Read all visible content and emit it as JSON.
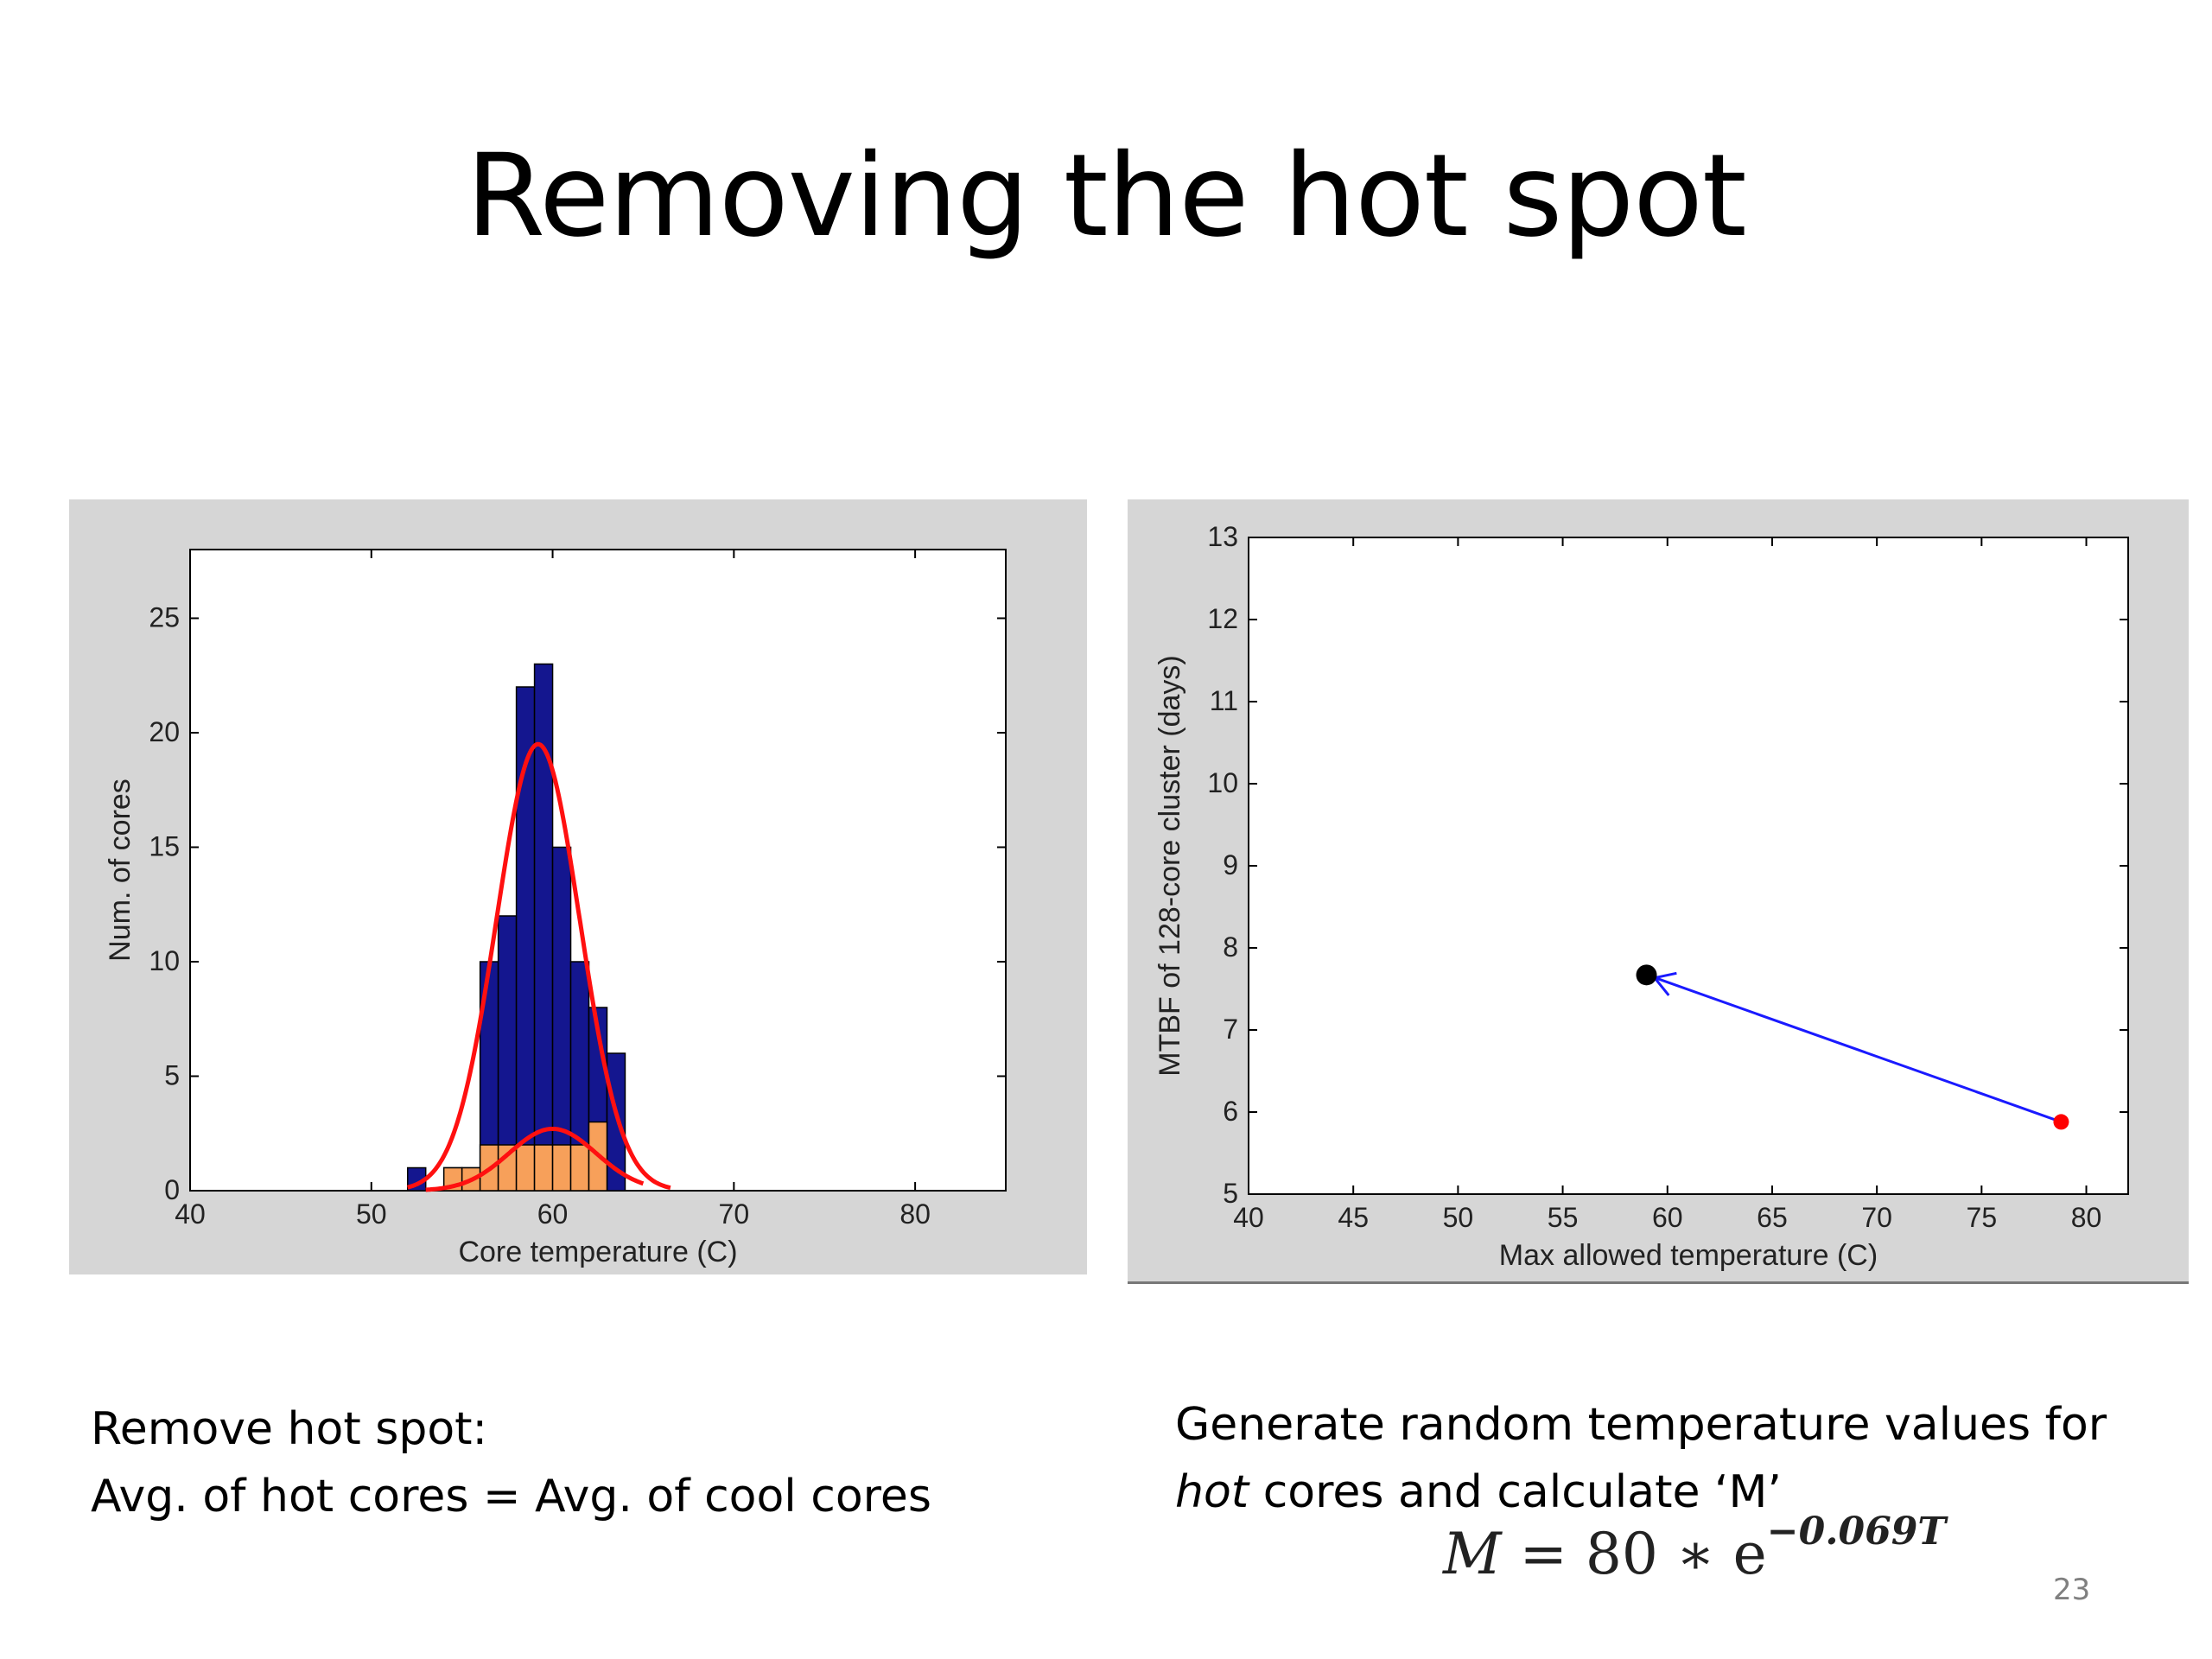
{
  "slide": {
    "title": "Removing the hot spot",
    "page_number": "23"
  },
  "captions": {
    "left_line1": "Remove hot spot:",
    "left_line2": "Avg. of hot cores = Avg. of cool cores",
    "right_line1": "Generate random temperature values for",
    "right_line2_italic": "hot",
    "right_line2_rest": " cores and calculate ‘M’"
  },
  "formula": {
    "lhs": "M",
    "eq": " = 80 ∗ e",
    "exponent": "−0.069T"
  },
  "chart_data": [
    {
      "type": "bar",
      "title": "",
      "xlabel": "Core temperature (C)",
      "ylabel": "Num. of cores",
      "xlim": [
        40,
        85
      ],
      "ylim": [
        0,
        28
      ],
      "xticks": [
        40,
        50,
        60,
        70,
        80
      ],
      "yticks": [
        0,
        5,
        10,
        15,
        20,
        25
      ],
      "grid": false,
      "series": [
        {
          "color": "#14168f",
          "bins_x": [
            52,
            53,
            54,
            55,
            56,
            57,
            58,
            59,
            60,
            61,
            62,
            63
          ],
          "bin_width": 1,
          "values": [
            1,
            0,
            1,
            1,
            10,
            12,
            22,
            23,
            15,
            10,
            8,
            6
          ]
        },
        {
          "color": "#f7a05a",
          "bins_x": [
            54,
            55,
            56,
            57,
            58,
            59,
            60,
            61,
            62
          ],
          "bin_width": 1,
          "values": [
            1,
            1,
            2,
            2,
            2,
            2,
            2,
            2,
            3
          ]
        }
      ],
      "fit_curves": [
        {
          "color": "#ff1010",
          "mean": 59.2,
          "sigma": 2.3,
          "peak": 19.5,
          "x_range": [
            52,
            66.5
          ]
        },
        {
          "color": "#ff1010",
          "mean": 60,
          "sigma": 2.4,
          "peak": 2.7,
          "x_range": [
            53,
            65
          ]
        }
      ]
    },
    {
      "type": "scatter",
      "title": "",
      "xlabel": "Max allowed temperature (C)",
      "ylabel": "MTBF of 128-core cluster (days)",
      "xlim": [
        40,
        82
      ],
      "ylim": [
        5,
        13
      ],
      "xticks": [
        40,
        45,
        50,
        55,
        60,
        65,
        70,
        75,
        80
      ],
      "yticks": [
        5,
        6,
        7,
        8,
        9,
        10,
        11,
        12,
        13
      ],
      "grid": false,
      "points": [
        {
          "x": 59,
          "y": 7.67,
          "color": "#000000"
        },
        {
          "x": 78.8,
          "y": 5.88,
          "color": "#ff0000"
        }
      ],
      "arrow": {
        "from": [
          78.8,
          5.88
        ],
        "to": [
          59,
          7.67
        ],
        "color": "#1a1aff"
      }
    }
  ]
}
